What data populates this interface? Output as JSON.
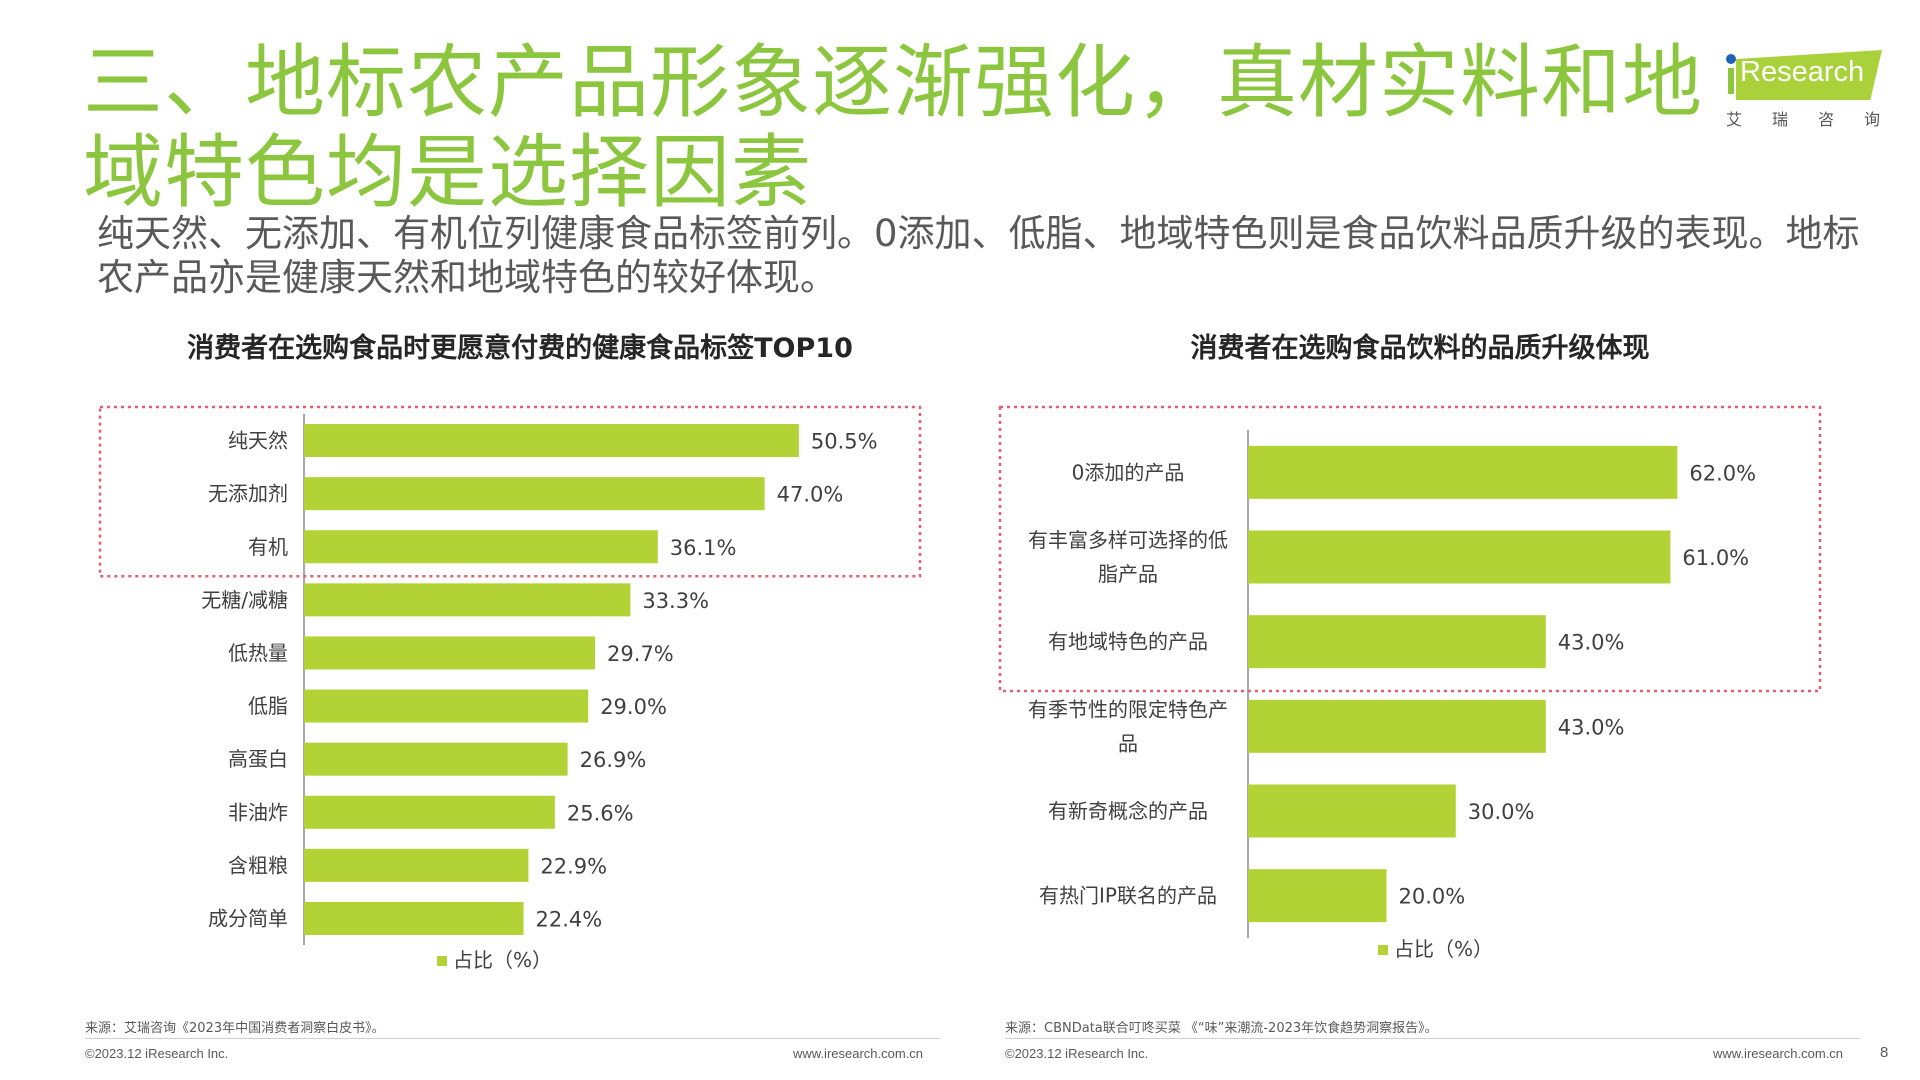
{
  "header": {
    "title": "三、地标农产品形象逐渐强化，真材实料和地域特色均是选择因素",
    "subtitle": "纯天然、无添加、有机位列健康食品标签前列。0添加、低脂、地域特色则是食品饮料品质升级的表现。地标农产品亦是健康天然和地域特色的较好体现。"
  },
  "logo": {
    "text": "Research",
    "cn": [
      "艾",
      "瑞",
      "咨",
      "询"
    ]
  },
  "colors": {
    "bar": "#b2d235",
    "title": "#8cc63f",
    "highlight_box": "#e06070"
  },
  "chart_data": [
    {
      "type": "bar",
      "orientation": "horizontal",
      "title": "消费者在选购食品时更愿意付费的健康食品标签TOP10",
      "categories": [
        "纯天然",
        "无添加剂",
        "有机",
        "无糖/减糖",
        "低热量",
        "低脂",
        "高蛋白",
        "非油炸",
        "含粗粮",
        "成分简单"
      ],
      "values": [
        50.5,
        47.0,
        36.1,
        33.3,
        29.7,
        29.0,
        26.9,
        25.6,
        22.9,
        22.4
      ],
      "value_labels": [
        "50.5%",
        "47.0%",
        "36.1%",
        "33.3%",
        "29.7%",
        "29.0%",
        "26.9%",
        "25.6%",
        "22.9%",
        "22.4%"
      ],
      "legend": "占比（%）",
      "legend_position": "bottom",
      "xlim": [
        0,
        70
      ],
      "highlight_top_n": 3,
      "grid": false
    },
    {
      "type": "bar",
      "orientation": "horizontal",
      "title": "消费者在选购食品饮料的品质升级体现",
      "categories": [
        "0添加的产品",
        "有丰富多样可选择的低脂产品",
        "有地域特色的产品",
        "有季节性的限定特色产品",
        "有新奇概念的产品",
        "有热门IP联名的产品"
      ],
      "category_lines": [
        [
          "0添加的产品"
        ],
        [
          "有丰富多样可选择的低",
          "脂产品"
        ],
        [
          "有地域特色的产品"
        ],
        [
          "有季节性的限定特色产",
          "品"
        ],
        [
          "有新奇概念的产品"
        ],
        [
          "有热门IP联名的产品"
        ]
      ],
      "values": [
        62.0,
        61.0,
        43.0,
        43.0,
        30.0,
        20.0
      ],
      "value_labels": [
        "62.0%",
        "61.0%",
        "43.0%",
        "43.0%",
        "30.0%",
        "20.0%"
      ],
      "legend": "占比（%）",
      "legend_position": "bottom",
      "xlim": [
        0,
        80
      ],
      "highlight_top_n": 3,
      "grid": false
    }
  ],
  "footer": {
    "left_source": "来源：艾瑞咨询《2023年中国消费者洞察白皮书》。",
    "right_source": "来源：CBNData联合叮咚买菜 《“味”来潮流-2023年饮食趋势洞察报告》。",
    "copyright": "©2023.12 iResearch Inc.",
    "website": "www.iresearch.com.cn",
    "page": "8"
  }
}
